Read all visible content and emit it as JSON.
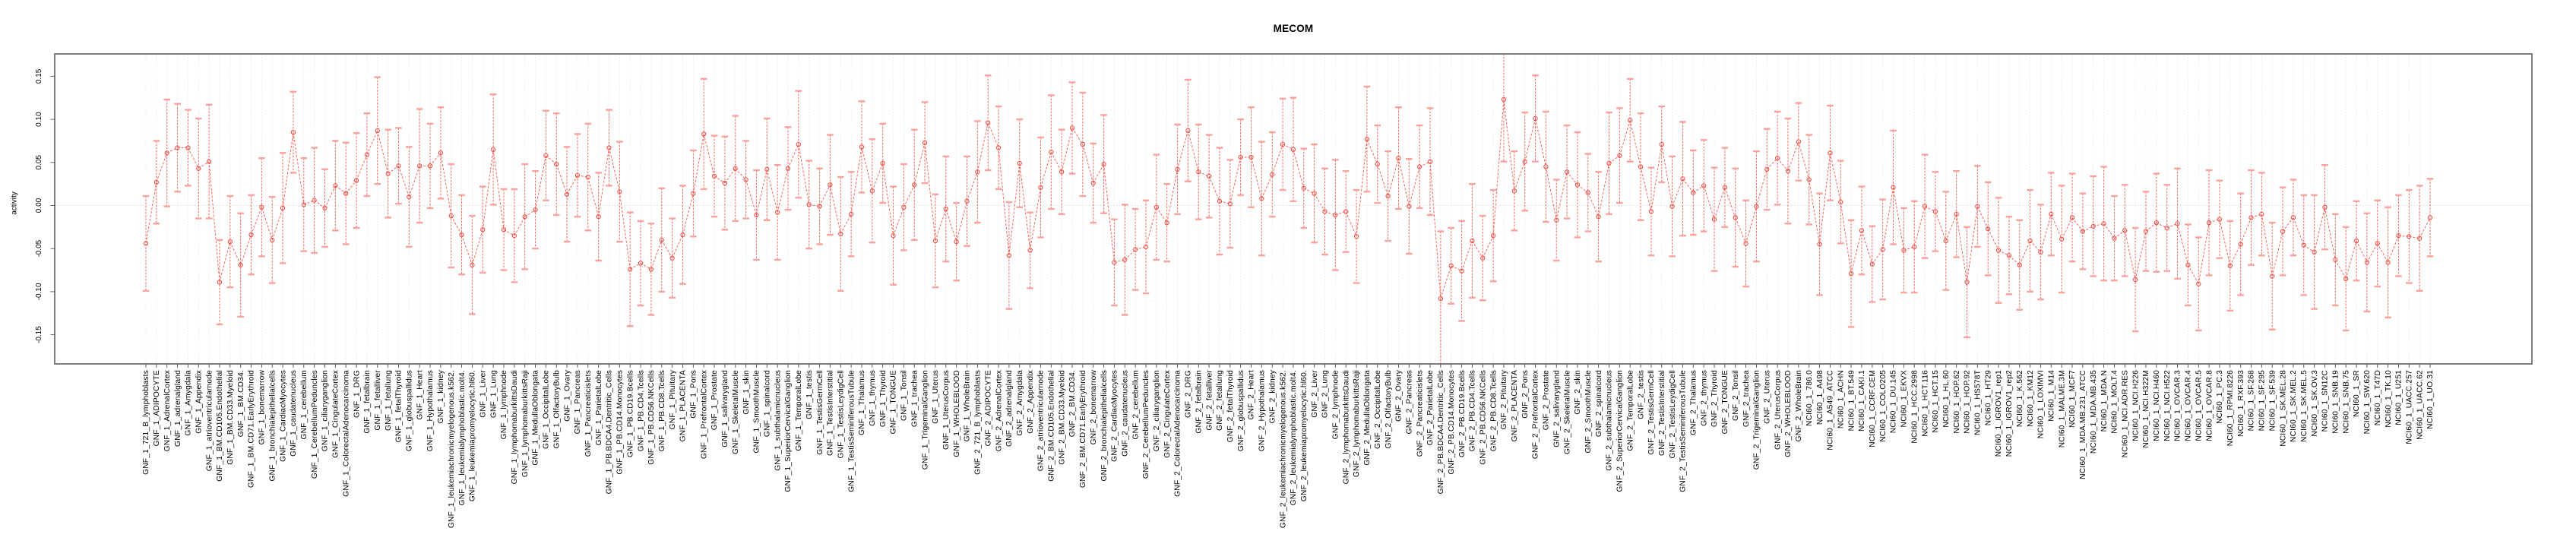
{
  "chart_data": {
    "type": "line",
    "subtype": "points-with-error-bars",
    "title": "MECOM",
    "xlabel": "",
    "ylabel": "activity",
    "ylim": [
      -0.184,
      0.176
    ],
    "y_ticks": [
      0.15,
      0.1,
      0.05,
      0.0,
      -0.05,
      -0.1,
      -0.15
    ],
    "grid": "dotted vertical line at every sample; dotted horizontal line at y=0",
    "legend": "none",
    "marker": "open-circle",
    "colors": {
      "line": "#f4665e",
      "cap": "#f8a39d",
      "marker": "#ee4f45",
      "grid": "#dcdcdc",
      "zero": "#cfcfcf",
      "axis": "#7f7f7f",
      "tick": "#4d4d4d",
      "text": "#000000"
    },
    "categories": [
      "GNF_1_721_B_lymphoblasts",
      "GNF_1_ADIPOCYTE",
      "GNF_1_AdrenalCortex",
      "GNF_1_adrenalgland",
      "GNF_1_Amygdala",
      "GNF_1_Appendix",
      "GNF_1_atrioventricularnode",
      "GNF_1_BM.CD105.Endothelial",
      "GNF_1_BM.CD33.Myeloid",
      "GNF_1_BM.CD34.",
      "GNF_1_BM.CD71.EarlyErythroid",
      "GNF_1_bonemarrow",
      "GNF_1_bronchialepithelialcells",
      "GNF_1_CardiacMyocytes",
      "GNF_1_caudatenucleus",
      "GNF_1_cerebellum",
      "GNF_1_CerebellumPeduncles",
      "GNF_1_ciliaryganglion",
      "GNF_1_CingulateCortex",
      "GNF_1_ColorectalAdenocarcinoma",
      "GNF_1_DRG",
      "GNF_1_fetalbrain",
      "GNF_1_fetalliver",
      "GNF_1_fetallung",
      "GNF_1_fetalThyroid",
      "GNF_1_globuspallidus",
      "GNF_1_Heart",
      "GNF_1_Hypothalamus",
      "GNF_1_kidney",
      "GNF_1_leukemiachronicmyelogenous.k562.",
      "GNF_1_leukemialymphoblastic.molt4.",
      "GNF_1_leukemiapromyelocytic.hl60.",
      "GNF_1_Liver",
      "GNF_1_Lung",
      "GNF_1_lymphnode",
      "GNF_1_lymphomaburkittsDaudi",
      "GNF_1_lymphomaburkittsRaji",
      "GNF_1_MedullaOblongata",
      "GNF_1_OccipitalLobe",
      "GNF_1_OlfactoryBulb",
      "GNF_1_Ovary",
      "GNF_1_Pancreas",
      "GNF_1_Pancreaticislets",
      "GNF_1_ParietalLobe",
      "GNF_1_PB.BDCA4.Dentritic_Cells",
      "GNF_1_PB.CD14.Monocytes",
      "GNF_1_PB.CD19.Bcells",
      "GNF_1_PB.CD4.Tcells",
      "GNF_1_PB.CD56.NKCells",
      "GNF_1_PB.CD8.Tcells",
      "GNF_1_Pituitary",
      "GNF_1_PLACENTA",
      "GNF_1_Pons",
      "GNF_1_PrefrontalCortex",
      "GNF_1_Prostate",
      "GNF_1_salivarygland",
      "GNF_1_SkeletalMuscle",
      "GNF_1_skin",
      "GNF_1_SmoothMuscle",
      "GNF_1_spinalcord",
      "GNF_1_subthalamicnucleus",
      "GNF_1_SuperiorCervicalGanglion",
      "GNF_1_TemporalLobe",
      "GNF_1_testis",
      "GNF_1_TestisGermCell",
      "GNF_1_TestisInterstitial",
      "GNF_1_TestisLeydigCell",
      "GNF_1_TestisSeminiferousTubule",
      "GNF_1_Thalamus",
      "GNF_1_thymus",
      "GNF_1_Thyroid",
      "GNF_1_TONGUE",
      "GNF_1_Tonsil",
      "GNF_1_trachea",
      "GNF_1_TrigeminalGanglion",
      "GNF_1_Uterus",
      "GNF_1_UterusCorpus",
      "GNF_1_WHOLEBLOOD",
      "GNF_1_WholeBrain",
      "GNF_2_721_B_lymphoblasts",
      "GNF_2_ADIPOCYTE",
      "GNF_2_AdrenalCortex",
      "GNF_2_adrenalgland",
      "GNF_2_Amygdala",
      "GNF_2_Appendix",
      "GNF_2_atrioventricularnode",
      "GNF_2_BM.CD105.Endothelial",
      "GNF_2_BM.CD33.Myeloid",
      "GNF_2_BM.CD34.",
      "GNF_2_BM.CD71.EarlyErythroid",
      "GNF_2_bonemarrow",
      "GNF_2_bronchialepithelialcells",
      "GNF_2_CardiacMyocytes",
      "GNF_2_caudatenucleus",
      "GNF_2_cerebellum",
      "GNF_2_CerebellumPeduncles",
      "GNF_2_ciliaryganglion",
      "GNF_2_CingulateCortex",
      "GNF_2_ColorectalAdenocarcinoma",
      "GNF_2_DRG",
      "GNF_2_fetalbrain",
      "GNF_2_fetalliver",
      "GNF_2_fetallung",
      "GNF_2_fetalThyroid",
      "GNF_2_globuspallidus",
      "GNF_2_Heart",
      "GNF_2_Hypothalamus",
      "GNF_2_kidney",
      "GNF_2_leukemiachronicmyelogenous.k562.",
      "GNF_2_leukemialymphoblastic.molt4.",
      "GNF_2_leukemiapromyelocytic.hl60.",
      "GNF_2_Liver",
      "GNF_2_Lung",
      "GNF_2_lymphnode",
      "GNF_2_lymphomaburkittsDaudi",
      "GNF_2_lymphomaburkittsRaji",
      "GNF_2_MedullaOblongata",
      "GNF_2_OccipitalLobe",
      "GNF_2_OlfactoryBulb",
      "GNF_2_Ovary",
      "GNF_2_Pancreas",
      "GNF_2_Pancreaticislets",
      "GNF_2_ParietalLobe",
      "GNF_2_PB.BDCA4.Dentritic_Cells",
      "GNF_2_PB.CD14.Monocytes",
      "GNF_2_PB.CD19.Bcells",
      "GNF_2_PB.CD4.Tcells",
      "GNF_2_PB.CD56.NKCells",
      "GNF_2_PB.CD8.Tcells",
      "GNF_2_Pituitary",
      "GNF_2_PLACENTA",
      "GNF_2_Pons",
      "GNF_2_PrefrontalCortex",
      "GNF_2_Prostate",
      "GNF_2_salivarygland",
      "GNF_2_SkeletalMuscle",
      "GNF_2_skin",
      "GNF_2_SmoothMuscle",
      "GNF_2_spinalcord",
      "GNF_2_subthalamicnucleus",
      "GNF_2_SuperiorCervicalGanglion",
      "GNF_2_TemporalLobe",
      "GNF_2_testis",
      "GNF_2_TestisGermCell",
      "GNF_2_TestisInterstitial",
      "GNF_2_TestisLeydigCell",
      "GNF_2_TestisSeminiferousTubule",
      "GNF_2_Thalamus",
      "GNF_2_thymus",
      "GNF_2_Thyroid",
      "GNF_2_TONGUE",
      "GNF_2_Tonsil",
      "GNF_2_trachea",
      "GNF_2_TrigeminalGanglion",
      "GNF_2_Uterus",
      "GNF_2_UterusCorpus",
      "GNF_2_WHOLEBLOOD",
      "GNF_2_WholeBrain",
      "NCI60_1_786.0",
      "NCI60_1_A498",
      "NCI60_1_A549_ATCC",
      "NCI60_1_ACHN",
      "NCI60_1_BT.549",
      "NCI60_1_CAKI.1",
      "NCI60_1_CCRF.CEM",
      "NCI60_1_COLO205",
      "NCI60_1_DU.145",
      "NCI60_1_EKVX",
      "NCI60_1_HCC.2998",
      "NCI60_1_HCT.116",
      "NCI60_1_HCT.15",
      "NCI60_1_HL.60",
      "NCI60_1_HOP.62",
      "NCI60_1_HOP.92",
      "NCI60_1_HS578T",
      "NCI60_1_HT29",
      "NCI60_1_IGROV1_rep1",
      "NCI60_1_IGROV1_rep2",
      "NCI60_1_K.562",
      "NCI60_1_KM12",
      "NCI60_1_LOXIMVI",
      "NCI60_1_M14",
      "NCI60_1_MALME.3M",
      "NCI60_1_MCF7",
      "NCI60_1_MDA.MB.231_ATCC",
      "NCI60_1_MDA.MB.435",
      "NCI60_1_MDA.N",
      "NCI60_1_MOLT.4",
      "NCI60_1_NCI.ADR.RES",
      "NCI60_1_NCI.H226",
      "NCI60_1_NCI.H322M",
      "NCI60_1_NCI.H460",
      "NCI60_1_NCI.H522",
      "NCI60_1_OVCAR.3",
      "NCI60_1_OVCAR.4",
      "NCI60_1_OVCAR.5",
      "NCI60_1_OVCAR.8",
      "NCI60_1_PC.3",
      "NCI60_1_RPMI.8226",
      "NCI60_1_RXF.393",
      "NCI60_1_SF.268",
      "NCI60_1_SF.295",
      "NCI60_1_SF.539",
      "NCI60_1_SK.MEL.28",
      "NCI60_1_SK.MEL.2",
      "NCI60_1_SK.MEL.5",
      "NCI60_1_SK.OV.3",
      "NCI60_1_SN12C",
      "NCI60_1_SNB.19",
      "NCI60_1_SNB.75",
      "NCI60_1_SR",
      "NCI60_1_SW.620",
      "NCI60_1_T47D",
      "NCI60_1_TK.10",
      "NCI60_1_U251",
      "NCI60_1_UACC.257",
      "NCI60_1_UACC.62",
      "NCI60_1_UO.31"
    ],
    "values": [
      -0.044,
      0.027,
      0.061,
      0.067,
      0.067,
      0.043,
      0.051,
      -0.089,
      -0.042,
      -0.069,
      -0.034,
      -0.002,
      -0.04,
      -0.003,
      0.085,
      0.001,
      0.006,
      -0.003,
      0.023,
      0.014,
      0.029,
      0.059,
      0.087,
      0.037,
      0.046,
      0.01,
      0.046,
      0.046,
      0.061,
      -0.012,
      -0.034,
      -0.069,
      -0.028,
      0.065,
      -0.028,
      -0.035,
      -0.013,
      -0.005,
      0.058,
      0.048,
      0.013,
      0.035,
      0.033,
      -0.013,
      0.067,
      0.016,
      -0.074,
      -0.067,
      -0.074,
      -0.04,
      -0.061,
      -0.034,
      0.014,
      0.083,
      0.034,
      0.026,
      0.043,
      0.03,
      -0.011,
      0.042,
      -0.008,
      0.043,
      0.071,
      0.001,
      -0.001,
      0.024,
      -0.033,
      -0.01,
      0.068,
      0.017,
      0.049,
      -0.035,
      -0.002,
      0.024,
      0.073,
      -0.041,
      -0.004,
      -0.042,
      0.005,
      0.039,
      0.096,
      0.067,
      -0.058,
      0.049,
      -0.052,
      0.021,
      0.062,
      0.039,
      0.09,
      0.071,
      0.026,
      0.048,
      -0.066,
      -0.063,
      -0.051,
      -0.048,
      -0.002,
      -0.02,
      0.042,
      0.087,
      0.039,
      0.034,
      0.005,
      0.002,
      0.056,
      0.056,
      0.008,
      0.036,
      0.071,
      0.065,
      0.02,
      0.014,
      -0.007,
      -0.011,
      -0.007,
      -0.036,
      0.077,
      0.048,
      0.011,
      0.055,
      -0.001,
      0.045,
      0.051,
      -0.108,
      -0.07,
      -0.076,
      -0.041,
      -0.061,
      -0.035,
      0.123,
      0.017,
      0.051,
      0.101,
      0.045,
      -0.017,
      0.039,
      0.024,
      0.015,
      -0.013,
      0.049,
      0.058,
      0.099,
      0.045,
      -0.007,
      0.071,
      -0.001,
      0.031,
      0.015,
      0.023,
      -0.016,
      0.021,
      -0.014,
      -0.044,
      -0.001,
      0.042,
      0.055,
      0.04,
      0.074,
      0.03,
      -0.045,
      0.061,
      0.004,
      -0.079,
      -0.029,
      -0.068,
      -0.051,
      0.021,
      -0.052,
      -0.048,
      -0.001,
      -0.007,
      -0.041,
      -0.01,
      -0.089,
      -0.001,
      -0.027,
      -0.052,
      -0.058,
      -0.069,
      -0.041,
      -0.054,
      -0.01,
      -0.039,
      -0.014,
      -0.03,
      -0.024,
      -0.021,
      -0.038,
      -0.029,
      -0.086,
      -0.03,
      -0.02,
      -0.026,
      -0.021,
      -0.069,
      -0.091,
      -0.02,
      -0.016,
      -0.07,
      -0.045,
      -0.014,
      -0.01,
      -0.082,
      -0.03,
      -0.014,
      -0.046,
      -0.054,
      -0.002,
      -0.063,
      -0.085,
      -0.041,
      -0.066,
      -0.044,
      -0.066,
      -0.035,
      -0.036,
      -0.038,
      -0.014
    ],
    "errors": [
      0.055,
      0.048,
      0.062,
      0.051,
      0.044,
      0.058,
      0.066,
      0.049,
      0.053,
      0.06,
      0.046,
      0.057,
      0.05,
      0.064,
      0.047,
      0.054,
      0.061,
      0.045,
      0.052,
      0.059,
      0.055,
      0.048,
      0.062,
      0.051,
      0.044,
      0.058,
      0.066,
      0.049,
      0.053,
      0.06,
      0.046,
      0.057,
      0.05,
      0.064,
      0.047,
      0.054,
      0.061,
      0.045,
      0.052,
      0.059,
      0.055,
      0.048,
      0.062,
      0.051,
      0.044,
      0.058,
      0.066,
      0.049,
      0.053,
      0.06,
      0.046,
      0.057,
      0.05,
      0.064,
      0.047,
      0.054,
      0.061,
      0.045,
      0.052,
      0.059,
      0.055,
      0.048,
      0.062,
      0.051,
      0.044,
      0.058,
      0.066,
      0.049,
      0.053,
      0.06,
      0.046,
      0.057,
      0.05,
      0.064,
      0.047,
      0.054,
      0.061,
      0.045,
      0.052,
      0.059,
      0.055,
      0.048,
      0.062,
      0.051,
      0.044,
      0.058,
      0.066,
      0.049,
      0.053,
      0.06,
      0.046,
      0.057,
      0.05,
      0.064,
      0.047,
      0.054,
      0.061,
      0.045,
      0.052,
      0.059,
      0.055,
      0.048,
      0.062,
      0.051,
      0.044,
      0.058,
      0.066,
      0.049,
      0.053,
      0.06,
      0.046,
      0.057,
      0.05,
      0.064,
      0.047,
      0.054,
      0.061,
      0.045,
      0.052,
      0.059,
      0.055,
      0.048,
      0.062,
      0.078,
      0.044,
      0.058,
      0.066,
      0.049,
      0.053,
      0.072,
      0.046,
      0.057,
      0.05,
      0.064,
      0.047,
      0.054,
      0.061,
      0.045,
      0.052,
      0.059,
      0.055,
      0.048,
      0.062,
      0.051,
      0.044,
      0.058,
      0.066,
      0.049,
      0.053,
      0.06,
      0.046,
      0.057,
      0.05,
      0.064,
      0.047,
      0.054,
      0.061,
      0.045,
      0.052,
      0.059,
      0.055,
      0.048,
      0.062,
      0.051,
      0.044,
      0.058,
      0.066,
      0.049,
      0.053,
      0.06,
      0.046,
      0.057,
      0.05,
      0.064,
      0.047,
      0.054,
      0.061,
      0.045,
      0.052,
      0.059,
      0.055,
      0.048,
      0.062,
      0.051,
      0.044,
      0.058,
      0.066,
      0.049,
      0.053,
      0.06,
      0.046,
      0.057,
      0.05,
      0.064,
      0.047,
      0.054,
      0.061,
      0.045,
      0.052,
      0.059,
      0.055,
      0.048,
      0.062,
      0.051,
      0.044,
      0.058,
      0.066,
      0.049,
      0.053,
      0.06,
      0.046,
      0.057,
      0.05,
      0.064,
      0.047,
      0.054,
      0.061,
      0.045
    ]
  }
}
